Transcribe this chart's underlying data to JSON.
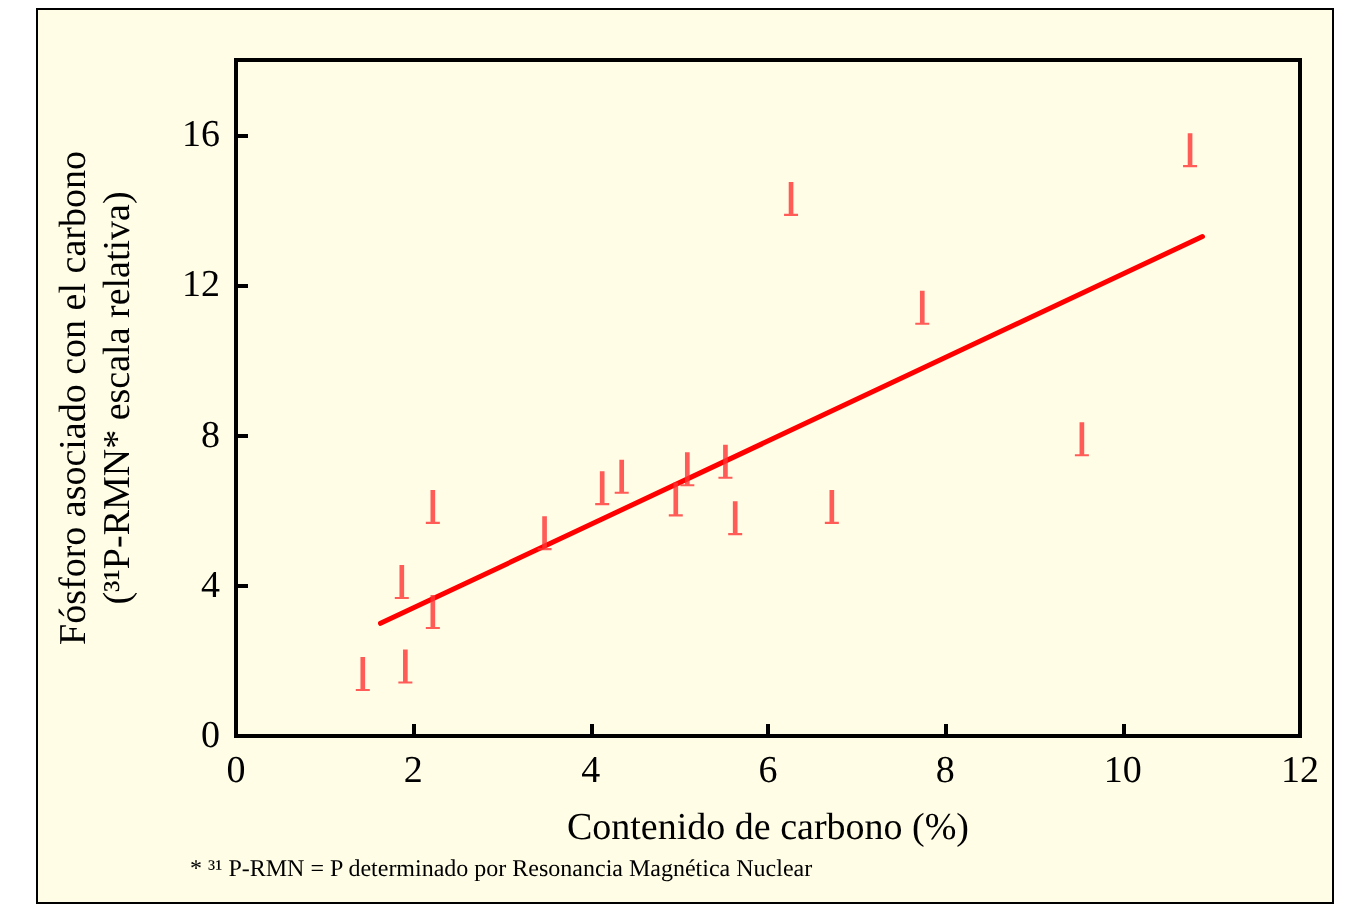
{
  "chart_data": {
    "type": "scatter",
    "xlabel": "Contenido de carbono (%)",
    "ylabel": "Fósforo asociado con el carbono\n(³¹P-RMN* escala relativa)",
    "annotations": [
      "* ³¹ P-RMN = P determinado por Resonancia Magnética Nuclear"
    ],
    "series": [
      {
        "color": "#ff3333",
        "x": [
          1.43,
          1.91,
          1.87,
          2.22,
          2.22,
          3.48,
          4.13,
          4.35,
          4.96,
          5.09,
          5.52,
          5.63,
          6.26,
          6.72,
          7.74,
          9.54,
          10.76
        ],
        "values": [
          1.65,
          1.85,
          4.1,
          6.1,
          3.3,
          5.4,
          6.6,
          6.9,
          6.3,
          7.1,
          7.3,
          5.8,
          14.3,
          6.1,
          11.4,
          7.9,
          15.6
        ]
      },
      {
        "type": "line",
        "color": "#ff0000",
        "x": [
          1.63,
          10.9
        ],
        "values": [
          3.0,
          13.3
        ]
      }
    ],
    "xlim": [
      0,
      12
    ],
    "xticks": [
      0,
      2,
      4,
      6,
      8,
      10,
      12
    ],
    "ylim": [
      0,
      18
    ],
    "yticks": [
      0,
      4,
      8,
      12,
      16
    ],
    "grid": false
  }
}
